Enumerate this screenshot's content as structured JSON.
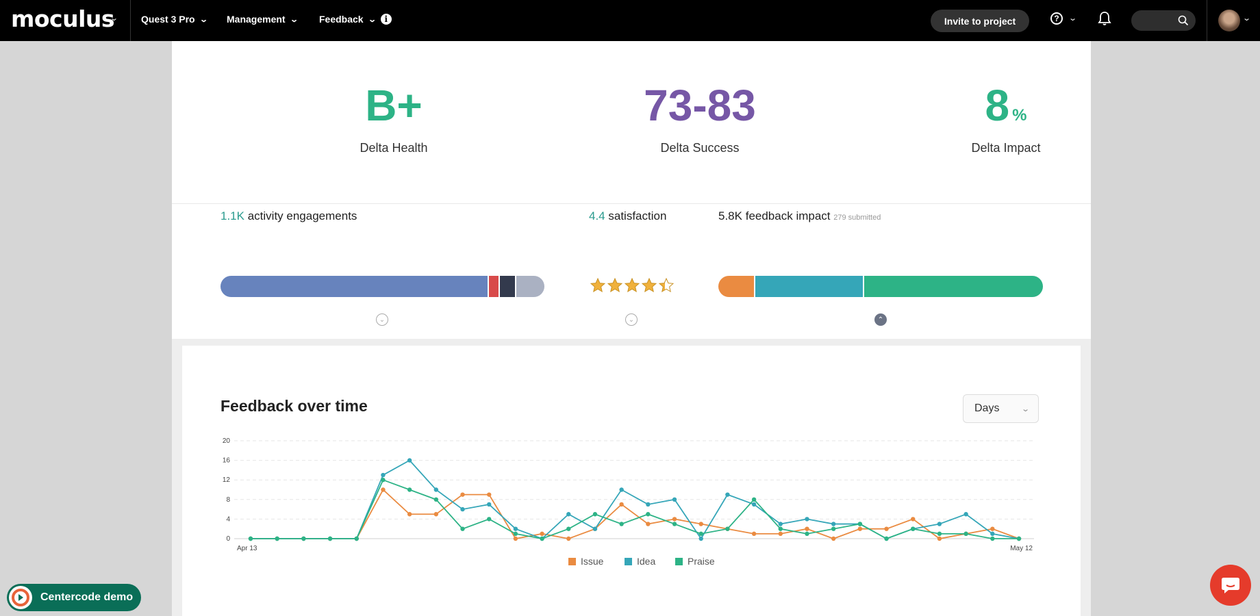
{
  "topbar": {
    "brand": "moculus",
    "nav": [
      {
        "label": "Quest 3 Pro"
      },
      {
        "label": "Management"
      },
      {
        "label": "Feedback"
      }
    ],
    "invite_label": "Invite to project",
    "help_label": "?"
  },
  "metrics": {
    "health": {
      "value": "B+",
      "label": "Delta Health",
      "color": "#2db386"
    },
    "success": {
      "value": "73-83",
      "label": "Delta Success",
      "color": "#7657a6"
    },
    "impact": {
      "value": "8",
      "unit": "%",
      "label": "Delta Impact",
      "color": "#2db386"
    }
  },
  "engagements": {
    "count": "1.1K",
    "label": "activity engagements",
    "segments": [
      {
        "color": "#6783bd",
        "share": 0.835
      },
      {
        "color": "#d84a4a",
        "share": 0.03
      },
      {
        "color": "#333a4d",
        "share": 0.048
      },
      {
        "color": "#aab1c2",
        "share": 0.087
      }
    ]
  },
  "satisfaction": {
    "value": "4.4",
    "label": "satisfaction",
    "rating": 4.4,
    "max": 5
  },
  "impact_bar": {
    "value": "5.8K",
    "label": "feedback impact",
    "submitted": "279 submitted",
    "segments": [
      {
        "color": "#ea8b41",
        "share": 0.11
      },
      {
        "color": "#35a6b8",
        "share": 0.335
      },
      {
        "color": "#2db386",
        "share": 0.555
      }
    ]
  },
  "chart_section": {
    "title": "Feedback over time",
    "dropdown_value": "Days"
  },
  "chart_data": {
    "type": "line",
    "title": "Feedback over time",
    "x_start_label": "Apr 13",
    "x_end_label": "May 12",
    "ylim": [
      0,
      20
    ],
    "yticks": [
      "0",
      "4",
      "8",
      "12",
      "16",
      "20"
    ],
    "series": [
      {
        "name": "Issue",
        "color": "#ea8b41",
        "values": [
          0,
          0,
          0,
          0,
          0,
          10,
          5,
          5,
          9,
          9,
          0,
          1,
          0,
          2,
          7,
          3,
          4,
          3,
          2,
          1,
          1,
          2,
          0,
          2,
          2,
          4,
          0,
          1,
          2,
          0
        ]
      },
      {
        "name": "Idea",
        "color": "#35a6b8",
        "values": [
          0,
          0,
          0,
          0,
          0,
          13,
          16,
          10,
          6,
          7,
          2,
          0,
          5,
          2,
          10,
          7,
          8,
          0,
          9,
          7,
          3,
          4,
          3,
          3,
          0,
          2,
          3,
          5,
          1,
          0
        ]
      },
      {
        "name": "Praise",
        "color": "#2db386",
        "values": [
          0,
          0,
          0,
          0,
          0,
          12,
          10,
          8,
          2,
          4,
          1,
          0,
          2,
          5,
          3,
          5,
          3,
          1,
          2,
          8,
          2,
          1,
          2,
          3,
          0,
          2,
          1,
          1,
          0,
          0
        ]
      }
    ]
  },
  "footer": {
    "centercode_label": "Centercode demo"
  }
}
